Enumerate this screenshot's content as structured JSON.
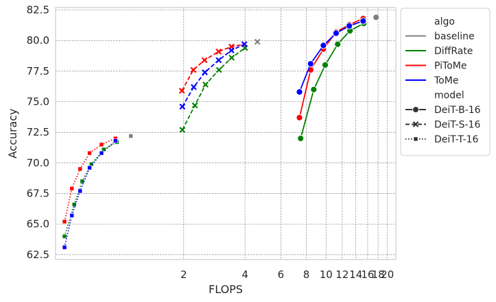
{
  "chart_data": {
    "type": "line",
    "xlabel": "FLOPS",
    "ylabel": "Accuracy",
    "x_scale": "log",
    "xlim": [
      0.47,
      22
    ],
    "ylim": [
      62.1,
      82.7
    ],
    "x_ticks": [
      2,
      4,
      6,
      8,
      10,
      12,
      14,
      16,
      18,
      20
    ],
    "y_ticks": [
      62.5,
      65.0,
      67.5,
      70.0,
      72.5,
      75.0,
      77.5,
      80.0,
      82.5
    ],
    "grid": true,
    "legend_placement": "top-right outside",
    "legend": {
      "algo_title": "algo",
      "model_title": "model",
      "algos": [
        {
          "name": "baseline",
          "color": "#808080"
        },
        {
          "name": "DiffRate",
          "color": "#008000"
        },
        {
          "name": "PiToMe",
          "color": "#ff0000"
        },
        {
          "name": "ToMe",
          "color": "#0000ff"
        }
      ],
      "models": [
        {
          "name": "DeiT-B-16",
          "dash": "solid",
          "marker": "circle"
        },
        {
          "name": "DeiT-S-16",
          "dash": "dashed",
          "marker": "x"
        },
        {
          "name": "DeiT-T-16",
          "dash": "dotted",
          "marker": "square"
        }
      ]
    },
    "series": [
      {
        "name": "DiffRate",
        "model": "DeiT-B-16",
        "color": "#008000",
        "dash": "solid",
        "marker": "circle",
        "x": [
          7.5,
          8.7,
          9.9,
          11.4,
          13.1,
          15.3
        ],
        "y": [
          72.0,
          76.0,
          78.0,
          79.7,
          80.8,
          81.4
        ]
      },
      {
        "name": "PiToMe",
        "model": "DeiT-B-16",
        "color": "#ff0000",
        "dash": "solid",
        "marker": "circle",
        "x": [
          7.4,
          8.4,
          9.7,
          11.2,
          13.0,
          15.2
        ],
        "y": [
          73.7,
          77.6,
          79.3,
          80.7,
          81.3,
          81.8
        ]
      },
      {
        "name": "ToMe",
        "model": "DeiT-B-16",
        "color": "#0000ff",
        "dash": "solid",
        "marker": "circle",
        "x": [
          7.4,
          8.4,
          9.7,
          11.2,
          13.0,
          15.2
        ],
        "y": [
          75.8,
          78.1,
          79.6,
          80.6,
          81.2,
          81.6
        ]
      },
      {
        "name": "baseline",
        "model": "DeiT-B-16",
        "color": "#808080",
        "dash": "solid",
        "marker": "circle",
        "x": [
          17.6
        ],
        "y": [
          81.9
        ]
      },
      {
        "name": "DiffRate",
        "model": "DeiT-S-16",
        "color": "#008000",
        "dash": "dashed",
        "marker": "x",
        "x": [
          1.97,
          2.27,
          2.56,
          2.98,
          3.44,
          4.0
        ],
        "y": [
          72.7,
          74.7,
          76.4,
          77.6,
          78.6,
          79.4
        ]
      },
      {
        "name": "PiToMe",
        "model": "DeiT-S-16",
        "color": "#ff0000",
        "dash": "dashed",
        "marker": "x",
        "x": [
          1.96,
          2.23,
          2.53,
          2.97,
          3.43,
          3.97
        ],
        "y": [
          75.9,
          77.6,
          78.4,
          79.1,
          79.5,
          79.7
        ]
      },
      {
        "name": "ToMe",
        "model": "DeiT-S-16",
        "color": "#0000ff",
        "dash": "dashed",
        "marker": "x",
        "x": [
          1.97,
          2.24,
          2.54,
          2.97,
          3.43,
          3.97
        ],
        "y": [
          74.6,
          76.2,
          77.4,
          78.4,
          79.2,
          79.7
        ]
      },
      {
        "name": "baseline",
        "model": "DeiT-S-16",
        "color": "#808080",
        "dash": "dashed",
        "marker": "x",
        "x": [
          4.6
        ],
        "y": [
          79.9
        ]
      },
      {
        "name": "DiffRate",
        "model": "DeiT-T-16",
        "color": "#008000",
        "dash": "dotted",
        "marker": "square",
        "x": [
          0.52,
          0.58,
          0.635,
          0.705,
          0.81,
          0.94
        ],
        "y": [
          64.0,
          66.6,
          68.5,
          69.9,
          71.1,
          71.7
        ]
      },
      {
        "name": "PiToMe",
        "model": "DeiT-T-16",
        "color": "#ff0000",
        "dash": "dotted",
        "marker": "square",
        "x": [
          0.52,
          0.565,
          0.62,
          0.69,
          0.79,
          0.925
        ],
        "y": [
          65.2,
          67.9,
          69.5,
          70.8,
          71.5,
          72.0
        ]
      },
      {
        "name": "ToMe",
        "model": "DeiT-T-16",
        "color": "#0000ff",
        "dash": "dotted",
        "marker": "square",
        "x": [
          0.52,
          0.565,
          0.62,
          0.69,
          0.79,
          0.925
        ],
        "y": [
          63.1,
          65.7,
          67.7,
          69.6,
          70.8,
          71.8
        ]
      },
      {
        "name": "baseline",
        "model": "DeiT-T-16",
        "color": "#808080",
        "dash": "dotted",
        "marker": "square",
        "x": [
          1.1
        ],
        "y": [
          72.2
        ]
      }
    ]
  }
}
